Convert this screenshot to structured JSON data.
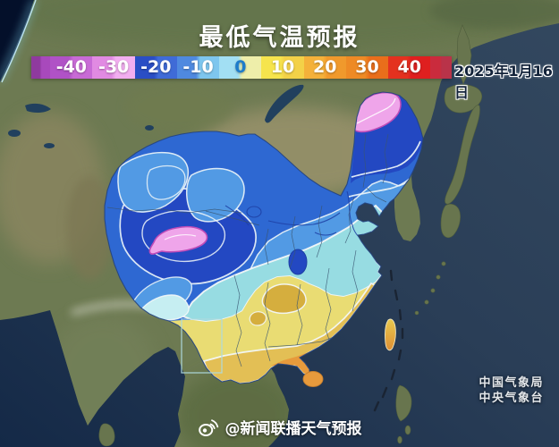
{
  "header": {
    "title": "最低气温预报",
    "date": "2025年1月16日"
  },
  "colorbar": {
    "tick_labels": [
      "-40",
      "-30",
      "-20",
      "-10",
      "0",
      "10",
      "20",
      "30",
      "40"
    ],
    "segments": [
      {
        "label": "",
        "c1": "#8f3a9e",
        "c2": "#a849bc",
        "flex": 0.45,
        "text": "#ffffff"
      },
      {
        "label": "-40",
        "c1": "#b052c6",
        "c2": "#c86bd6",
        "flex": 1,
        "text": "#ffffff"
      },
      {
        "label": "-30",
        "c1": "#e18ae2",
        "c2": "#f2aef0",
        "flex": 1,
        "text": "#ffffff"
      },
      {
        "label": "-20",
        "c1": "#2a4ec5",
        "c2": "#3f6bd7",
        "flex": 1,
        "text": "#ffffff"
      },
      {
        "label": "-10",
        "c1": "#4f89df",
        "c2": "#7ec6ee",
        "flex": 1,
        "text": "#ffffff"
      },
      {
        "label": "0",
        "c1": "#a2dff3",
        "c2": "#eeeeaa",
        "flex": 1,
        "text": "#1e7ccb"
      },
      {
        "label": "10",
        "c1": "#f6e44d",
        "c2": "#f3d148",
        "flex": 1,
        "text": "#ffffff"
      },
      {
        "label": "20",
        "c1": "#f4b13a",
        "c2": "#f0992c",
        "flex": 1,
        "text": "#ffffff"
      },
      {
        "label": "30",
        "c1": "#ee8a25",
        "c2": "#e96e1b",
        "flex": 1,
        "text": "#ffffff"
      },
      {
        "label": "40",
        "c1": "#e4311f",
        "c2": "#df1f1f",
        "flex": 1,
        "text": "#ffffff"
      },
      {
        "label": "",
        "c1": "#ca2b3d",
        "c2": "#b93349",
        "flex": 0.5,
        "text": "#ffffff"
      }
    ]
  },
  "watermark": {
    "icon": "weibo-icon",
    "handle": "@新闻联播天气预报"
  },
  "agency": {
    "line1": "中国气象局",
    "line2": "中央气象台"
  },
  "map": {
    "region_label": "China minimum temperature contour map",
    "colors": {
      "ocean": "#1d3351",
      "terrain": "#6d7a52",
      "band_base_blue": "#2e68d2",
      "band_light_blue": "#529ae4",
      "band_dark_blue": "#2348c2",
      "band_cyan": "#97dce2",
      "band_pale_cyan": "#c6eef2",
      "band_yellow": "#e9dc73",
      "band_gold": "#d5ae3e",
      "band_deep_gold": "#e3bf55",
      "band_orange": "#e79a3c",
      "cold_spot_pink": "#efa5ea",
      "pink_border": "#bf4cb8",
      "contour_white": "#f2f7f8",
      "contour_navy": "#1d3fa4",
      "province_line": "#3a5671"
    }
  }
}
